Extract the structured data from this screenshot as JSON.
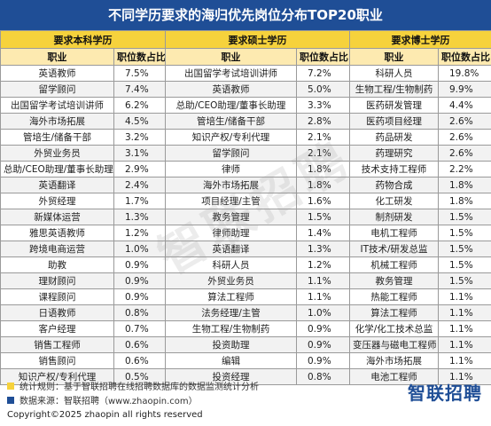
{
  "title": "不同学历要求的海归优先岗位分布TOP20职业",
  "groups": [
    "要求本科学历",
    "要求硕士学历",
    "要求博士学历"
  ],
  "col_job": "职业",
  "col_share": "职位数占比",
  "rows": [
    {
      "b_job": "英语教师",
      "b_pct": "7.5%",
      "m_job": "出国留学考试培训讲师",
      "m_pct": "7.2%",
      "d_job": "科研人员",
      "d_pct": "19.8%"
    },
    {
      "b_job": "留学顾问",
      "b_pct": "7.4%",
      "m_job": "英语教师",
      "m_pct": "5.0%",
      "d_job": "生物工程/生物制药",
      "d_pct": "9.9%"
    },
    {
      "b_job": "出国留学考试培训讲师",
      "b_pct": "6.2%",
      "m_job": "总助/CEO助理/董事长助理",
      "m_pct": "3.3%",
      "d_job": "医药研发管理",
      "d_pct": "4.4%"
    },
    {
      "b_job": "海外市场拓展",
      "b_pct": "4.5%",
      "m_job": "管培生/储备干部",
      "m_pct": "2.8%",
      "d_job": "医药项目经理",
      "d_pct": "2.6%"
    },
    {
      "b_job": "管培生/储备干部",
      "b_pct": "3.2%",
      "m_job": "知识产权/专利代理",
      "m_pct": "2.1%",
      "d_job": "药品研发",
      "d_pct": "2.6%"
    },
    {
      "b_job": "外贸业务员",
      "b_pct": "3.1%",
      "m_job": "留学顾问",
      "m_pct": "2.1%",
      "d_job": "药理研究",
      "d_pct": "2.6%"
    },
    {
      "b_job": "总助/CEO助理/董事长助理",
      "b_pct": "2.9%",
      "m_job": "律师",
      "m_pct": "1.8%",
      "d_job": "技术支持工程师",
      "d_pct": "2.2%"
    },
    {
      "b_job": "英语翻译",
      "b_pct": "2.4%",
      "m_job": "海外市场拓展",
      "m_pct": "1.8%",
      "d_job": "药物合成",
      "d_pct": "1.8%"
    },
    {
      "b_job": "外贸经理",
      "b_pct": "1.7%",
      "m_job": "项目经理/主管",
      "m_pct": "1.6%",
      "d_job": "化工研发",
      "d_pct": "1.8%"
    },
    {
      "b_job": "新媒体运营",
      "b_pct": "1.3%",
      "m_job": "教务管理",
      "m_pct": "1.5%",
      "d_job": "制剂研发",
      "d_pct": "1.5%"
    },
    {
      "b_job": "雅思英语教师",
      "b_pct": "1.2%",
      "m_job": "律师助理",
      "m_pct": "1.4%",
      "d_job": "电机工程师",
      "d_pct": "1.5%"
    },
    {
      "b_job": "跨境电商运营",
      "b_pct": "1.0%",
      "m_job": "英语翻译",
      "m_pct": "1.3%",
      "d_job": "IT技术/研发总监",
      "d_pct": "1.5%"
    },
    {
      "b_job": "助教",
      "b_pct": "0.9%",
      "m_job": "科研人员",
      "m_pct": "1.2%",
      "d_job": "机械工程师",
      "d_pct": "1.5%"
    },
    {
      "b_job": "理财顾问",
      "b_pct": "0.9%",
      "m_job": "外贸业务员",
      "m_pct": "1.1%",
      "d_job": "教务管理",
      "d_pct": "1.5%"
    },
    {
      "b_job": "课程顾问",
      "b_pct": "0.9%",
      "m_job": "算法工程师",
      "m_pct": "1.1%",
      "d_job": "热能工程师",
      "d_pct": "1.1%"
    },
    {
      "b_job": "日语教师",
      "b_pct": "0.8%",
      "m_job": "法务经理/主管",
      "m_pct": "1.0%",
      "d_job": "算法工程师",
      "d_pct": "1.1%"
    },
    {
      "b_job": "客户经理",
      "b_pct": "0.7%",
      "m_job": "生物工程/生物制药",
      "m_pct": "0.9%",
      "d_job": "化学/化工技术总监",
      "d_pct": "1.1%"
    },
    {
      "b_job": "销售工程师",
      "b_pct": "0.6%",
      "m_job": "投资助理",
      "m_pct": "0.9%",
      "d_job": "变压器与磁电工程师",
      "d_pct": "1.1%"
    },
    {
      "b_job": "销售顾问",
      "b_pct": "0.6%",
      "m_job": "编辑",
      "m_pct": "0.9%",
      "d_job": "海外市场拓展",
      "d_pct": "1.1%"
    },
    {
      "b_job": "知识产权/专利代理",
      "b_pct": "0.5%",
      "m_job": "投资经理",
      "m_pct": "0.8%",
      "d_job": "电池工程师",
      "d_pct": "1.1%"
    }
  ],
  "watermark": "智联招聘",
  "footer": {
    "rule": "统计规则：基于智联招聘在线招聘数据库的数据监测统计分析",
    "source": "数据来源：智联招聘（www.zhaopin.com）",
    "logo": "智联招聘",
    "copyright": "Copyright©2025 zhaopin all rights reserved",
    "rule_color": "#f6d23c",
    "source_color": "#1f4e96"
  }
}
